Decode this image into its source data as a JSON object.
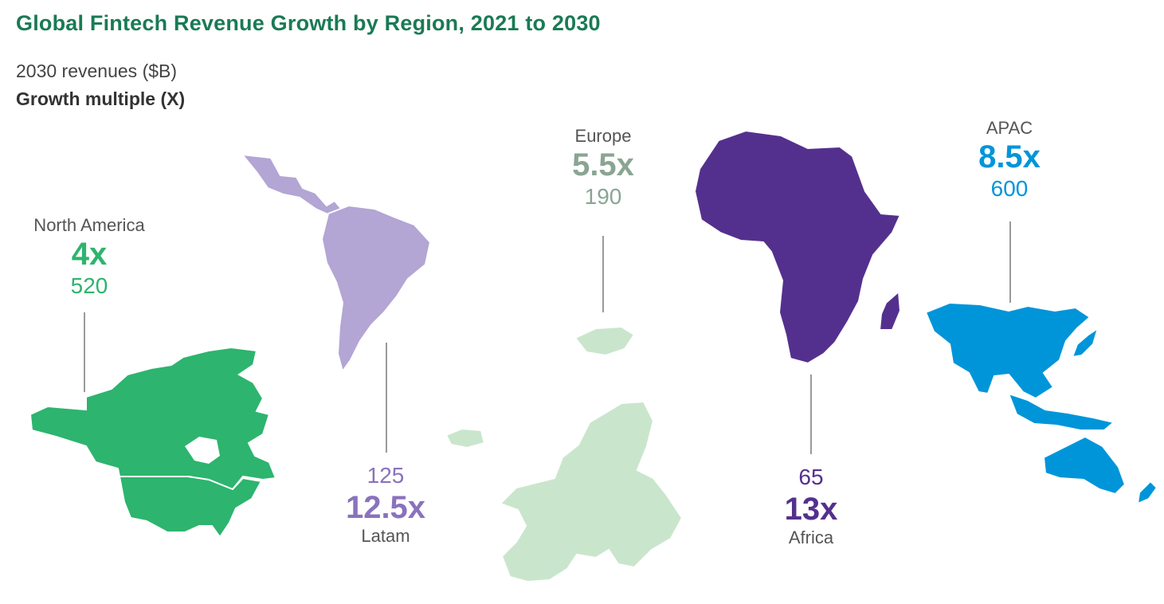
{
  "title": "Global Fintech Revenue Growth by Region, 2021 to 2030",
  "legend": {
    "revenue_label": "2030 revenues ($B)",
    "multiple_label": "Growth multiple (X)"
  },
  "colors": {
    "title": "#1a7a56",
    "north_america": "#2db46e",
    "latam": "#b3a5d4",
    "latam_text": "#8a72bd",
    "europe": "#c9e6cc",
    "europe_text": "#8aa593",
    "africa": "#54308e",
    "apac": "#0095d9"
  },
  "chart_data": {
    "type": "map",
    "title": "Global Fintech Revenue Growth by Region, 2021 to 2030",
    "units": {
      "revenue": "$B",
      "growth": "X"
    },
    "regions": [
      {
        "name": "North America",
        "revenue": "520",
        "multiple": "4x"
      },
      {
        "name": "Latam",
        "revenue": "125",
        "multiple": "12.5x"
      },
      {
        "name": "Europe",
        "revenue": "190",
        "multiple": "5.5x"
      },
      {
        "name": "Africa",
        "revenue": "65",
        "multiple": "13x"
      },
      {
        "name": "APAC",
        "revenue": "600",
        "multiple": "8.5x"
      }
    ]
  }
}
